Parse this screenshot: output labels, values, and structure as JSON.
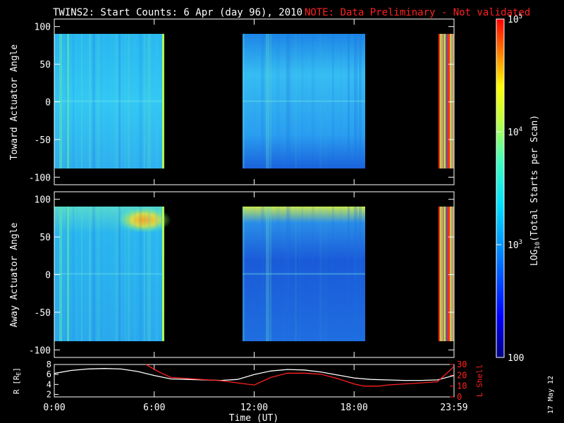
{
  "title": {
    "main": "TWINS2: Start Counts:  6 Apr (day  96), 2010",
    "note": "NOTE: Data Preliminary - Not validated",
    "note_color": "#ff2020"
  },
  "stamp": "17 May 12",
  "chart_data": [
    {
      "type": "heatmap",
      "name": "toward",
      "ylabel": "Toward Actuator Angle",
      "ylim": [
        -110,
        110
      ],
      "yticks": [
        100,
        50,
        0,
        -50,
        -100
      ],
      "angle_range": [
        -90,
        90
      ],
      "data_coverage_hours": [
        [
          0,
          6.6
        ],
        [
          10.8,
          18.6
        ],
        [
          23.3,
          24
        ]
      ]
    },
    {
      "type": "heatmap",
      "name": "away",
      "ylabel": "Away Actuator Angle",
      "ylim": [
        -110,
        110
      ],
      "yticks": [
        100,
        50,
        0,
        -50,
        -100
      ],
      "angle_range": [
        -90,
        90
      ],
      "data_coverage_hours": [
        [
          0,
          6.6
        ],
        [
          10.8,
          18.6
        ],
        [
          23.3,
          24
        ]
      ]
    },
    {
      "type": "line",
      "name": "orbit",
      "ylabel_left": "R [R",
      "ylabel_left_sub": "E",
      "ylabel_right": "L Shell",
      "ylim_left": [
        1.5,
        8
      ],
      "yticks_left": [
        8,
        6,
        4,
        2
      ],
      "ylim_right": [
        0,
        30
      ],
      "yticks_right": [
        30,
        20,
        10,
        0
      ],
      "xlim": [
        0,
        24
      ],
      "xticks": [
        {
          "v": 0,
          "label": "0:00"
        },
        {
          "v": 6,
          "label": "6:00"
        },
        {
          "v": 12,
          "label": "12:00"
        },
        {
          "v": 18,
          "label": "18:00"
        },
        {
          "v": 24,
          "label": "23:59"
        }
      ],
      "xlabel": "Time (UT)",
      "series": [
        {
          "color": "#ffffff",
          "axis": "left",
          "x": [
            0,
            1,
            2,
            3,
            4,
            5,
            6,
            7,
            8,
            9,
            10,
            11,
            12,
            13,
            14,
            15,
            16,
            17,
            18,
            19,
            20,
            21,
            22,
            23,
            24
          ],
          "y": [
            6.2,
            6.8,
            7.1,
            7.2,
            7.1,
            6.6,
            5.8,
            5.1,
            5.0,
            4.9,
            4.8,
            5.0,
            6.0,
            6.7,
            7.0,
            6.9,
            6.5,
            5.9,
            5.3,
            5.0,
            4.9,
            4.8,
            4.8,
            4.9,
            5.8
          ]
        },
        {
          "color": "#ff2020",
          "axis": "right",
          "x": [
            5.5,
            6.3,
            7.0,
            8,
            9,
            10,
            11,
            12,
            13,
            14,
            15,
            16,
            17,
            18,
            18.6,
            19.5,
            20,
            21,
            22,
            23,
            23.99
          ],
          "y": [
            30,
            23,
            18,
            17,
            16,
            15,
            13,
            11,
            18,
            22,
            22,
            21,
            17,
            12,
            10,
            10,
            11,
            12,
            13,
            14,
            28
          ]
        }
      ]
    }
  ],
  "colorbar": {
    "label": "LOG",
    "label_sub": "10",
    "label_rest": "(Total Starts per Scan)",
    "range": [
      100,
      100000
    ],
    "ticks": [
      {
        "v": 100,
        "label": "100"
      },
      {
        "v": 1000,
        "label": "10",
        "sup": "3"
      },
      {
        "v": 10000,
        "label": "10",
        "sup": "4"
      },
      {
        "v": 100000,
        "label": "10",
        "sup": "5"
      }
    ],
    "stops": [
      "#000080",
      "#0000ff",
      "#0080ff",
      "#00e0ff",
      "#40ffc0",
      "#c0ff40",
      "#ffff00",
      "#ff8000",
      "#ff0000"
    ]
  }
}
